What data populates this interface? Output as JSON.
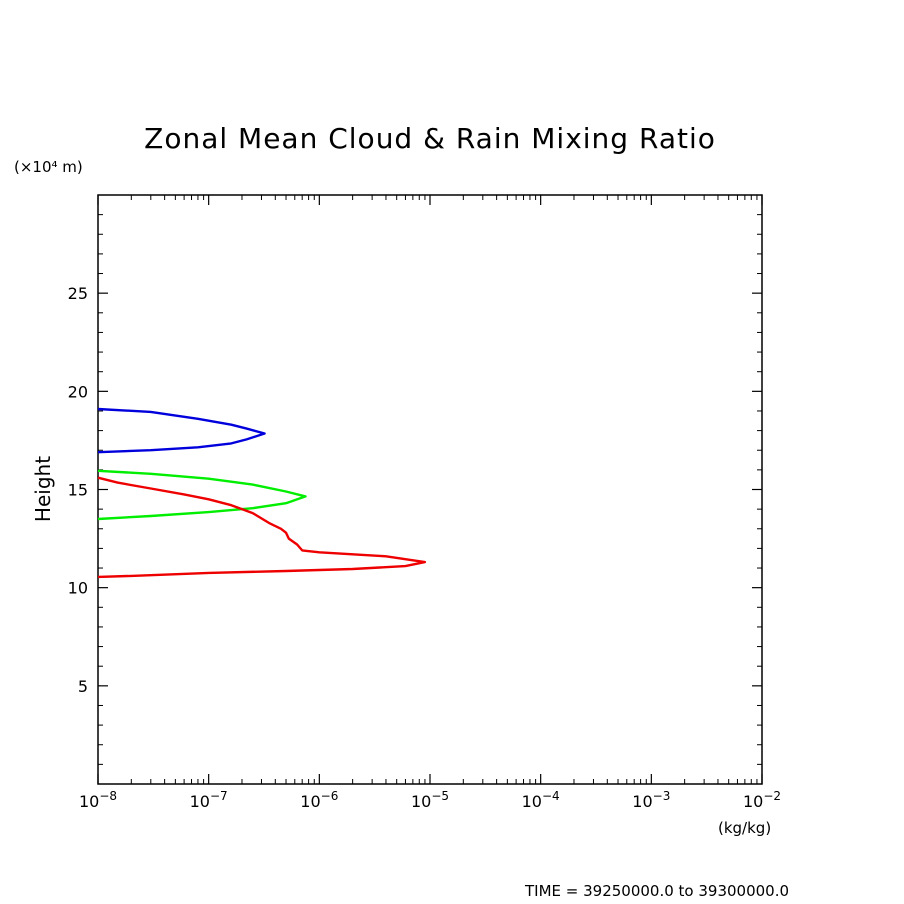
{
  "chart_data": {
    "type": "line",
    "title": "Zonal Mean Cloud & Rain Mixing Ratio",
    "ylabel": "Height",
    "y_unit": "(×10⁴ m)",
    "x_unit": "(kg/kg)",
    "xscale": "log",
    "xlim": [
      1e-08,
      0.01
    ],
    "ylim": [
      0,
      30
    ],
    "x_ticks": [
      {
        "value": 1e-08,
        "base": "10",
        "exp": "−8"
      },
      {
        "value": 1e-07,
        "base": "10",
        "exp": "−7"
      },
      {
        "value": 1e-06,
        "base": "10",
        "exp": "−6"
      },
      {
        "value": 1e-05,
        "base": "10",
        "exp": "−5"
      },
      {
        "value": 0.0001,
        "base": "10",
        "exp": "−4"
      },
      {
        "value": 0.001,
        "base": "10",
        "exp": "−3"
      },
      {
        "value": 0.01,
        "base": "10",
        "exp": "−2"
      }
    ],
    "y_ticks": [
      {
        "value": 5,
        "label": "5"
      },
      {
        "value": 10,
        "label": "10"
      },
      {
        "value": 15,
        "label": "15"
      },
      {
        "value": 20,
        "label": "20"
      },
      {
        "value": 25,
        "label": "25"
      }
    ],
    "grid": false,
    "series": [
      {
        "color": "#0000dd",
        "points": [
          [
            1e-08,
            19.1
          ],
          [
            3e-08,
            18.95
          ],
          [
            8e-08,
            18.6
          ],
          [
            1.6e-07,
            18.3
          ],
          [
            2.2e-07,
            18.1
          ],
          [
            3.2e-07,
            17.85
          ],
          [
            2.2e-07,
            17.55
          ],
          [
            1.6e-07,
            17.35
          ],
          [
            8e-08,
            17.15
          ],
          [
            3e-08,
            17.0
          ],
          [
            1e-08,
            16.9
          ]
        ]
      },
      {
        "color": "#00ee00",
        "points": [
          [
            1e-08,
            15.95
          ],
          [
            3e-08,
            15.8
          ],
          [
            1e-07,
            15.55
          ],
          [
            2.5e-07,
            15.25
          ],
          [
            5e-07,
            14.9
          ],
          [
            7.5e-07,
            14.65
          ],
          [
            5e-07,
            14.3
          ],
          [
            2.5e-07,
            14.05
          ],
          [
            1e-07,
            13.85
          ],
          [
            3e-08,
            13.65
          ],
          [
            1e-08,
            13.5
          ]
        ]
      },
      {
        "color": "#ee0000",
        "points": [
          [
            1e-08,
            15.6
          ],
          [
            1.5e-08,
            15.35
          ],
          [
            3e-08,
            15.05
          ],
          [
            6e-08,
            14.75
          ],
          [
            1e-07,
            14.5
          ],
          [
            1.6e-07,
            14.2
          ],
          [
            2.5e-07,
            13.8
          ],
          [
            3.5e-07,
            13.3
          ],
          [
            4.5e-07,
            13.0
          ],
          [
            5e-07,
            12.8
          ],
          [
            5.3e-07,
            12.5
          ],
          [
            6.3e-07,
            12.2
          ],
          [
            7e-07,
            11.9
          ],
          [
            1e-06,
            11.8
          ],
          [
            2e-06,
            11.7
          ],
          [
            4e-06,
            11.6
          ],
          [
            6e-06,
            11.45
          ],
          [
            9e-06,
            11.3
          ],
          [
            6e-06,
            11.1
          ],
          [
            2e-06,
            10.95
          ],
          [
            5e-07,
            10.85
          ],
          [
            1e-07,
            10.75
          ],
          [
            2e-08,
            10.6
          ],
          [
            1e-08,
            10.55
          ]
        ]
      }
    ]
  },
  "footer": {
    "time_range": "TIME = 39250000.0 to 39300000.0"
  }
}
